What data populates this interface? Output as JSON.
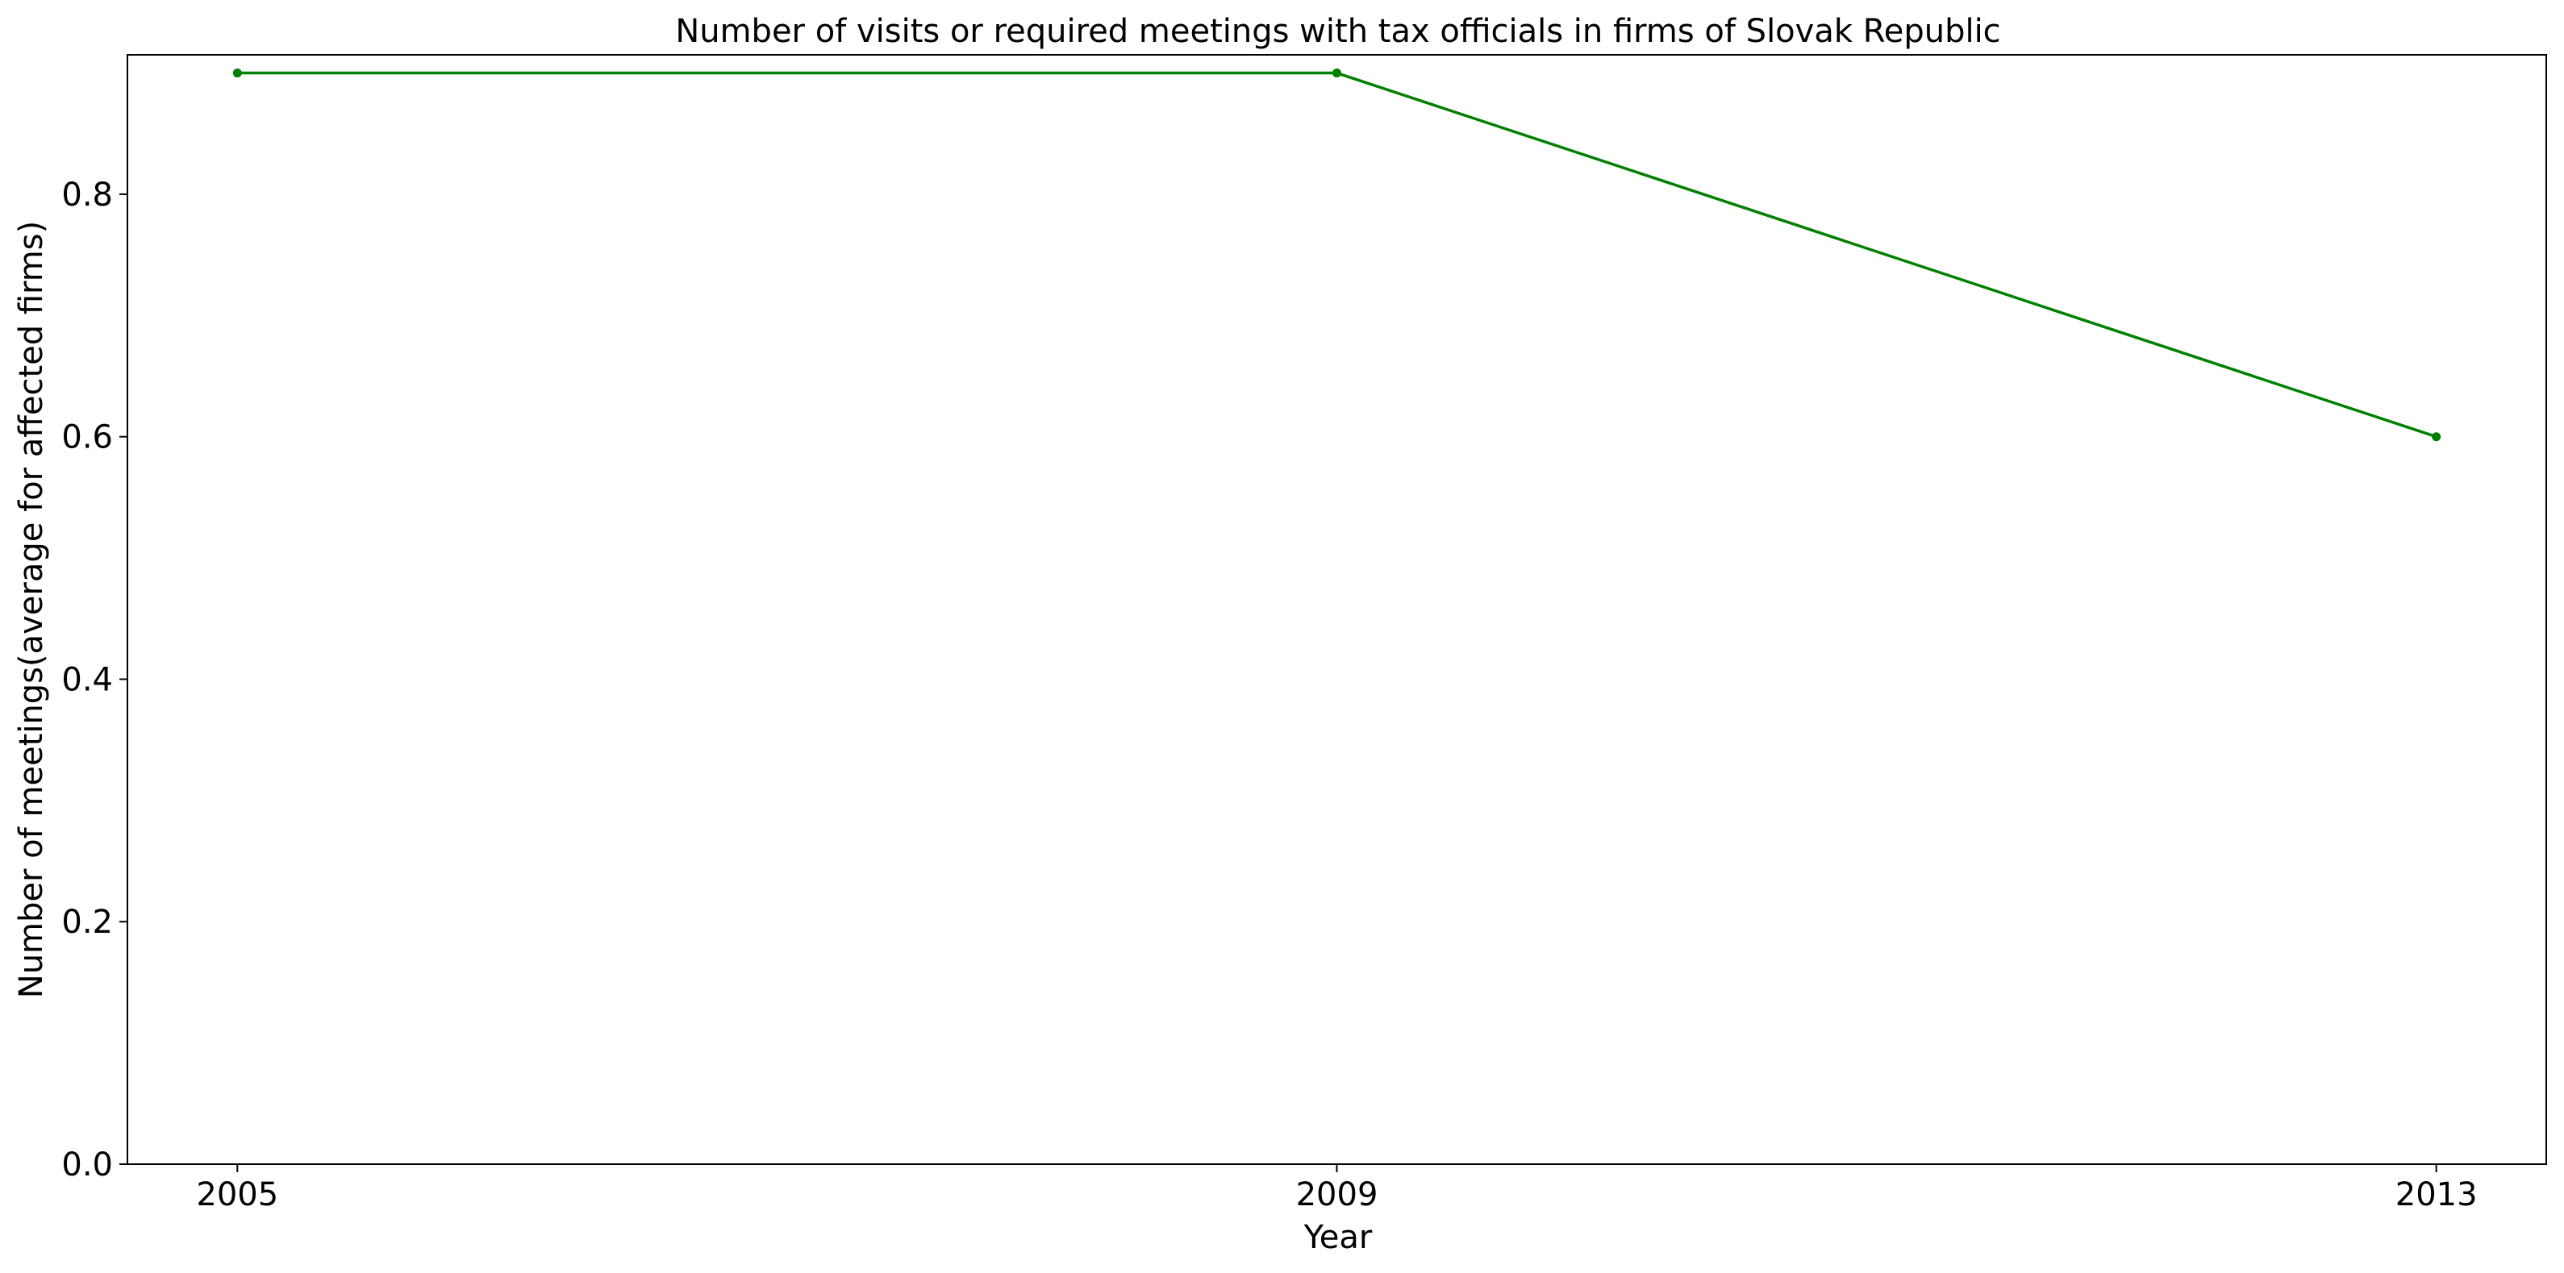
{
  "chart_data": {
    "type": "line",
    "title": "Number of visits or required meetings with tax officials in firms of Slovak Republic",
    "xlabel": "Year",
    "ylabel": "Number of meetings(average for affected firms)",
    "x": [
      "2005",
      "2009",
      "2013"
    ],
    "series": [
      {
        "color": "#008000",
        "marker": "circle",
        "values": [
          0.9,
          0.9,
          0.6
        ]
      }
    ],
    "xlim": [
      2004.6,
      2013.4
    ],
    "ylim": [
      0,
      0.915
    ],
    "yticks": [
      0.0,
      0.2,
      0.4,
      0.6,
      0.8
    ],
    "ytick_labels": [
      "0.0",
      "0.2",
      "0.4",
      "0.6",
      "0.8"
    ],
    "grid": false,
    "legend": "none"
  }
}
